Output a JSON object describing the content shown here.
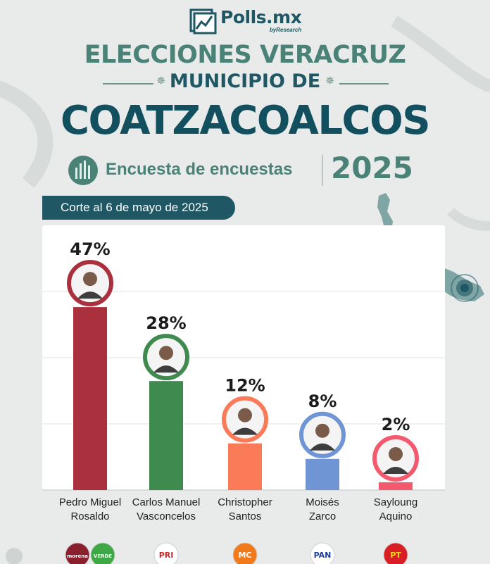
{
  "brand": {
    "name": "Polls.mx",
    "sub": "byResearch"
  },
  "header": {
    "line1": "ELECCIONES VERACRUZ",
    "line2": "MUNICIPIO DE",
    "line3": "COATZACOALCOS",
    "subtitle": "Encuesta de encuestas",
    "year": "2025",
    "corte": "Corte al 6 de mayo de 2025"
  },
  "colors": {
    "accent": "#1f5864",
    "green": "#4a8277"
  },
  "chart_data": {
    "type": "bar",
    "title": "",
    "xlabel": "",
    "ylabel": "",
    "ylim": [
      0,
      68
    ],
    "grid": true,
    "categories": [
      "Pedro Miguel Rosaldo",
      "Carlos Manuel Vasconcelos",
      "Christopher Santos",
      "Moisés Zarco",
      "Sayloung Aquino"
    ],
    "category_lines": [
      [
        "Pedro Miguel",
        "Rosaldo"
      ],
      [
        "Carlos Manuel",
        "Vasconcelos"
      ],
      [
        "Christopher",
        "Santos"
      ],
      [
        "Moisés",
        "Zarco"
      ],
      [
        "Sayloung",
        "Aquino"
      ]
    ],
    "values": [
      47,
      28,
      12,
      8,
      2
    ],
    "labels": [
      "47%",
      "28%",
      "12%",
      "8%",
      "2%"
    ],
    "bar_colors": [
      "#a9303c",
      "#3f8a4e",
      "#fb7a58",
      "#6f95d4",
      "#f45a6e"
    ],
    "parties": [
      [
        {
          "name": "morena",
          "bg": "#8a1f2e",
          "fg": "#ffffff"
        },
        {
          "name": "VERDE",
          "bg": "#3ea845",
          "fg": "#ffffff"
        }
      ],
      [
        {
          "name": "PRI",
          "bg": "#ffffff",
          "fg": "#d62828"
        }
      ],
      [
        {
          "name": "MC",
          "bg": "#f07a1c",
          "fg": "#ffffff"
        }
      ],
      [
        {
          "name": "PAN",
          "bg": "#ffffff",
          "fg": "#1b3e9a"
        }
      ],
      [
        {
          "name": "PT",
          "bg": "#d81f26",
          "fg": "#f7d417"
        }
      ]
    ]
  }
}
